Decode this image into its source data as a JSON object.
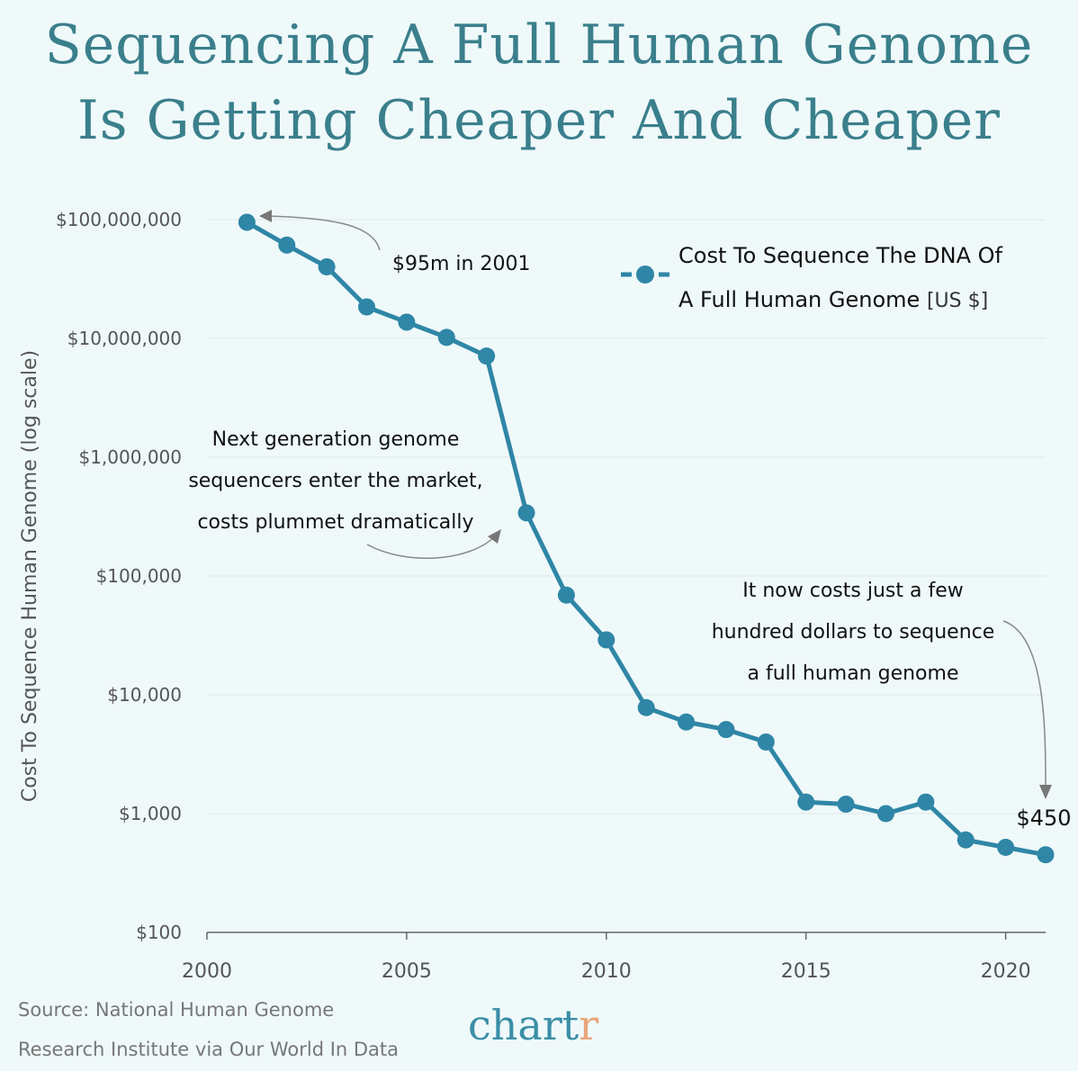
{
  "title_line1": "Sequencing A Full Human Genome",
  "title_line2": "Is Getting Cheaper And Cheaper",
  "chart_data": {
    "type": "line",
    "title": "Sequencing A Full Human Genome Is Getting Cheaper And Cheaper",
    "ylabel": "Cost To Sequence Human Genome (log scale)",
    "xlabel": "",
    "yscale": "log",
    "ylim": [
      100,
      100000000
    ],
    "xlim": [
      2000,
      2021
    ],
    "x_ticks": [
      "2000",
      "2005",
      "2010",
      "2015",
      "2020"
    ],
    "y_ticks": [
      "$100",
      "$1,000",
      "$10,000",
      "$100,000",
      "$1,000,000",
      "$10,000,000",
      "$100,000,000"
    ],
    "grid": "horizontal",
    "legend_position": "top-right",
    "color": "#2f86a6",
    "series": [
      {
        "name": "Cost To Sequence The DNA Of A Full Human Genome [US $]",
        "x": [
          2001,
          2002,
          2003,
          2004,
          2005,
          2006,
          2007,
          2008,
          2009,
          2010,
          2011,
          2012,
          2013,
          2014,
          2015,
          2016,
          2017,
          2018,
          2019,
          2020,
          2021
        ],
        "y": [
          95000000,
          61000000,
          40000000,
          18400000,
          13700000,
          10200000,
          7100000,
          340000,
          69000,
          29000,
          7800,
          5900,
          5100,
          4000,
          1250,
          1200,
          1000,
          1250,
          600,
          520,
          450
        ]
      }
    ],
    "legend_line1": "Cost To Sequence The DNA Of",
    "legend_line2": "A Full Human Genome",
    "legend_unit": "[US $]",
    "annotations": {
      "first": "$95m in 2001",
      "ngs": [
        "Next generation genome",
        "sequencers enter the market,",
        "costs plummet dramatically"
      ],
      "now": [
        "It now costs just a few",
        "hundred dollars to sequence",
        "a full human genome"
      ],
      "last": "$450"
    }
  },
  "source_line1": "Source: National Human Genome",
  "source_line2": "Research Institute via Our World In Data",
  "logo": {
    "main": "chart",
    "accent": "r"
  }
}
